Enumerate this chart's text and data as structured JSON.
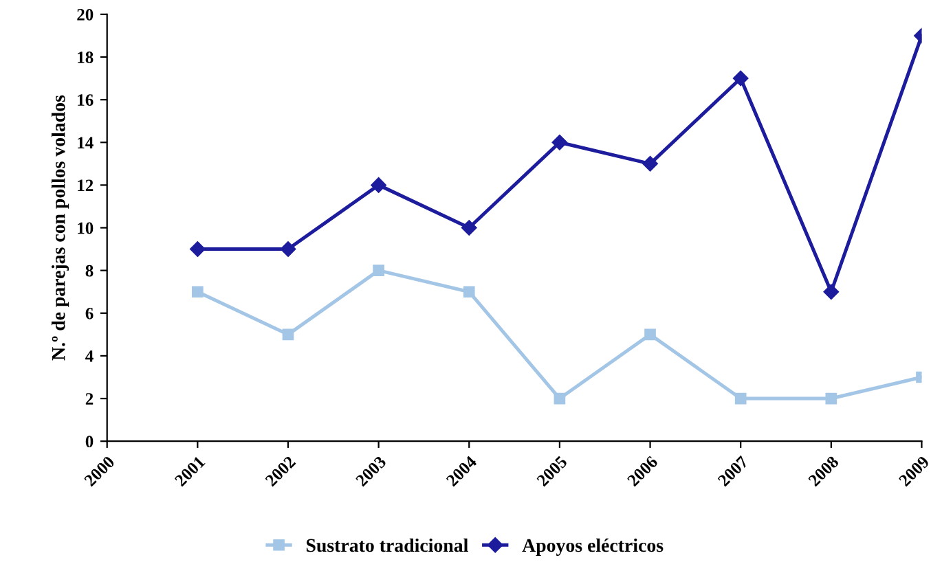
{
  "chart_data": {
    "type": "line",
    "ylabel": "N.º de parejas con pollos volados",
    "x": [
      2001,
      2002,
      2003,
      2004,
      2005,
      2006,
      2007,
      2008,
      2009
    ],
    "xlim": [
      2000,
      2009
    ],
    "xticks": [
      2000,
      2001,
      2002,
      2003,
      2004,
      2005,
      2006,
      2007,
      2008,
      2009
    ],
    "ylim": [
      0,
      20
    ],
    "yticks": [
      0,
      2,
      4,
      6,
      8,
      10,
      12,
      14,
      16,
      18,
      20
    ],
    "series": [
      {
        "name": "Sustrato tradicional",
        "color": "#a4c6e6",
        "marker": "square",
        "values": [
          7,
          5,
          8,
          7,
          2,
          5,
          2,
          2,
          3
        ]
      },
      {
        "name": "Apoyos eléctricos",
        "color": "#1c1c9c",
        "marker": "diamond",
        "values": [
          9,
          9,
          12,
          10,
          14,
          13,
          17,
          7,
          19
        ]
      }
    ],
    "grid": false,
    "legend": "bottom",
    "line_style": "solid"
  }
}
